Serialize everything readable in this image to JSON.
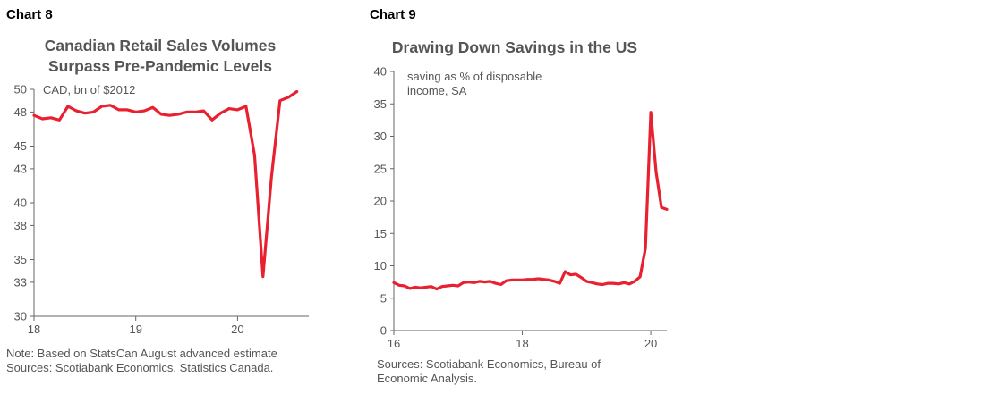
{
  "chart8": {
    "label": "Chart 8",
    "title_line1": "Canadian Retail Sales Volumes",
    "title_line2": "Surpass Pre-Pandemic Levels",
    "note": "Note: Based on StatsCan August advanced estimate",
    "sources": "Sources: Scotiabank Economics, Statistics Canada."
  },
  "chart9": {
    "label": "Chart 9",
    "title": "Drawing Down Savings in the US",
    "sources_line1": "Sources: Scotiabank Economics, Bureau of",
    "sources_line2": "Economic Analysis."
  },
  "colors": {
    "series": "#e8202f",
    "axis": "#666666"
  },
  "chart_data": [
    {
      "type": "line",
      "title": "Canadian Retail Sales Volumes Surpass Pre-Pandemic Levels",
      "ylabel": "CAD, bn of $2012",
      "ylim": [
        30,
        50
      ],
      "yticks": [
        30,
        33,
        35,
        38,
        40,
        43,
        45,
        48,
        50
      ],
      "ytick_labels": [
        "30",
        "33",
        "35",
        "38",
        "40",
        "43",
        "45",
        "48",
        "50"
      ],
      "xlim": [
        2018.0,
        2020.7
      ],
      "xticks": [
        2018,
        2019,
        2020
      ],
      "xtick_labels": [
        "18",
        "19",
        "20"
      ],
      "grid": false,
      "series": [
        {
          "x": [
            2018.0,
            2018.083,
            2018.167,
            2018.25,
            2018.333,
            2018.417,
            2018.5,
            2018.583,
            2018.667,
            2018.75,
            2018.833,
            2018.917,
            2019.0,
            2019.083,
            2019.167,
            2019.25,
            2019.333,
            2019.417,
            2019.5,
            2019.583,
            2019.667,
            2019.75,
            2019.833,
            2019.917,
            2020.0,
            2020.083,
            2020.167,
            2020.25,
            2020.333,
            2020.417,
            2020.5,
            2020.583
          ],
          "values": [
            47.7,
            47.4,
            47.5,
            47.3,
            48.5,
            48.1,
            47.9,
            48.0,
            48.5,
            48.6,
            48.2,
            48.2,
            48.0,
            48.1,
            48.4,
            47.8,
            47.7,
            47.8,
            48.0,
            48.0,
            48.1,
            47.3,
            47.9,
            48.3,
            48.2,
            48.5,
            44.2,
            33.5,
            42.3,
            49.0,
            49.3,
            49.8
          ]
        }
      ]
    },
    {
      "type": "line",
      "title": "Drawing Down Savings in the US",
      "ylabel": "saving as % of disposable income, SA",
      "ylim": [
        0,
        40
      ],
      "yticks": [
        0,
        5,
        10,
        15,
        20,
        25,
        30,
        35,
        40
      ],
      "ytick_labels": [
        "0",
        "5",
        "10",
        "15",
        "20",
        "25",
        "30",
        "35",
        "40"
      ],
      "xlim": [
        2016.0,
        2020.25
      ],
      "xticks": [
        2016,
        2018,
        2020
      ],
      "xtick_labels": [
        "16",
        "18",
        "20"
      ],
      "grid": false,
      "series": [
        {
          "x": [
            2016.0,
            2016.083,
            2016.167,
            2016.25,
            2016.333,
            2016.417,
            2016.5,
            2016.583,
            2016.667,
            2016.75,
            2016.833,
            2016.917,
            2017.0,
            2017.083,
            2017.167,
            2017.25,
            2017.333,
            2017.417,
            2017.5,
            2017.583,
            2017.667,
            2017.75,
            2017.833,
            2017.917,
            2018.0,
            2018.083,
            2018.167,
            2018.25,
            2018.333,
            2018.417,
            2018.5,
            2018.583,
            2018.667,
            2018.75,
            2018.833,
            2018.917,
            2019.0,
            2019.083,
            2019.167,
            2019.25,
            2019.333,
            2019.417,
            2019.5,
            2019.583,
            2019.667,
            2019.75,
            2019.833,
            2019.917,
            2020.0,
            2020.083,
            2020.167,
            2020.25
          ],
          "values": [
            7.4,
            7.0,
            6.9,
            6.5,
            6.7,
            6.6,
            6.7,
            6.8,
            6.4,
            6.8,
            6.9,
            7.0,
            6.9,
            7.4,
            7.5,
            7.4,
            7.6,
            7.5,
            7.6,
            7.3,
            7.1,
            7.7,
            7.8,
            7.8,
            7.8,
            7.9,
            7.9,
            8.0,
            7.9,
            7.8,
            7.6,
            7.3,
            9.1,
            8.6,
            8.7,
            8.2,
            7.6,
            7.4,
            7.2,
            7.1,
            7.3,
            7.3,
            7.2,
            7.4,
            7.2,
            7.6,
            8.3,
            12.7,
            33.7,
            24.5,
            19.0,
            18.7
          ]
        }
      ]
    }
  ]
}
